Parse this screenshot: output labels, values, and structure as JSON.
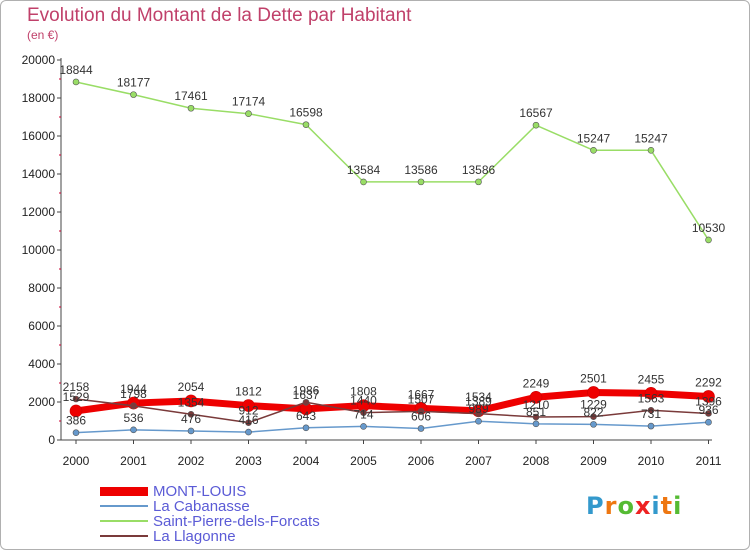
{
  "chart_data": {
    "type": "line",
    "title": "Evolution du Montant de la Dette par Habitant",
    "subtitle": "(en €)",
    "x": [
      "2000",
      "2001",
      "2002",
      "2003",
      "2004",
      "2005",
      "2006",
      "2007",
      "2008",
      "2009",
      "2010",
      "2011"
    ],
    "yticks": [
      "0",
      "2000",
      "4000",
      "6000",
      "8000",
      "10000",
      "12000",
      "14000",
      "16000",
      "18000",
      "20000"
    ],
    "ylim": [
      0,
      20000
    ],
    "grid": false,
    "legend_position": "bottom-left",
    "series": [
      {
        "name": "MONT-LOUIS",
        "color": "#ee0000",
        "values": [
          1529,
          1944,
          2054,
          1812,
          1637,
          1808,
          1667,
          1534,
          2249,
          2501,
          2455,
          2292
        ]
      },
      {
        "name": "La Cabanasse",
        "color": "#6699cc",
        "values": [
          386,
          536,
          476,
          416,
          643,
          714,
          606,
          989,
          851,
          822,
          731,
          936
        ]
      },
      {
        "name": "Saint-Pierre-dels-Forcats",
        "color": "#99dd66",
        "values": [
          18844,
          18177,
          17461,
          17174,
          16598,
          13584,
          13586,
          13586,
          16567,
          15247,
          15247,
          10530
        ]
      },
      {
        "name": "La Llagonne",
        "color": "#7a3a3a",
        "values": [
          2158,
          1798,
          1354,
          912,
          1986,
          1440,
          1507,
          1389,
          1210,
          1229,
          1563,
          1396
        ]
      }
    ]
  },
  "logo": {
    "text": "Proxiti",
    "letter_colors": [
      "#3399cc",
      "#ee7711",
      "#55bb33",
      "#ee2222",
      "#3399cc",
      "#ee7711",
      "#55bb33"
    ]
  }
}
